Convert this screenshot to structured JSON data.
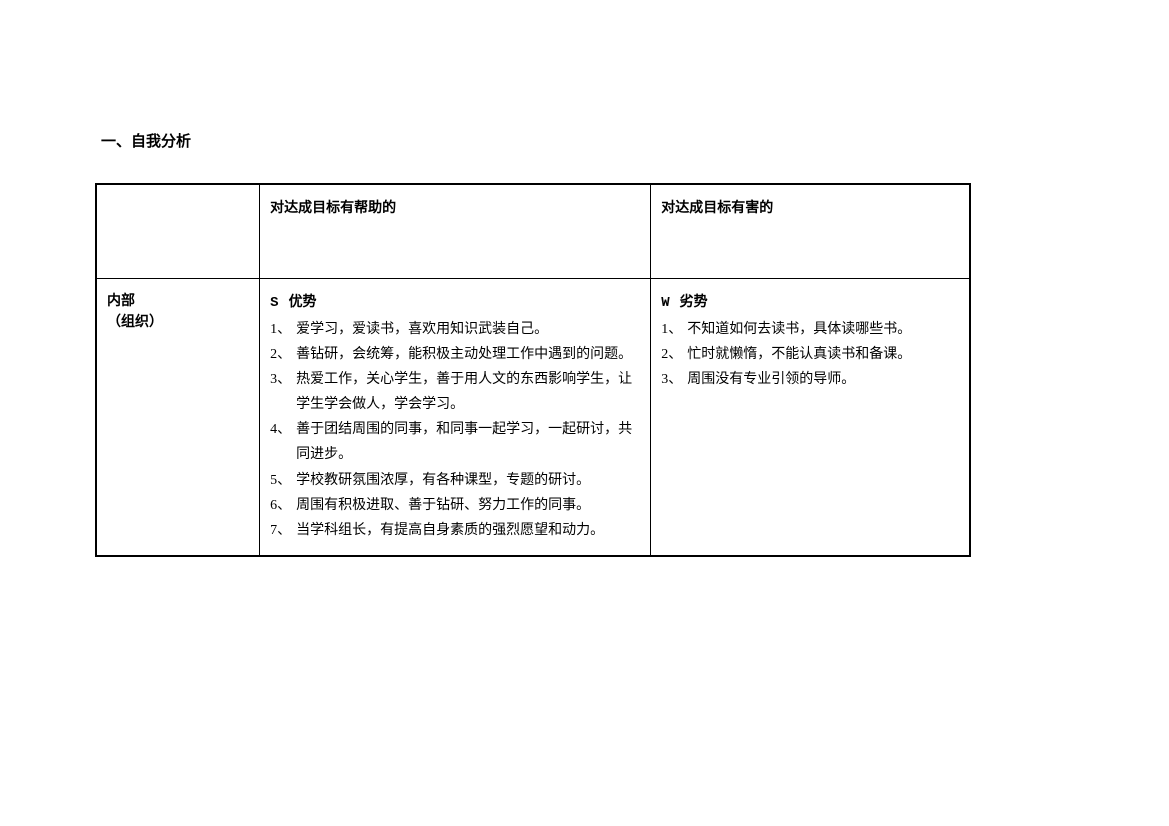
{
  "section_title": "一、自我分析",
  "table": {
    "type": "table",
    "columns": [
      "",
      "对达成目标有帮助的",
      "对达成目标有害的"
    ],
    "row_label_line1": "内部",
    "row_label_line2": "（组织）",
    "strengths": {
      "letter": "S",
      "title": "优势",
      "items": [
        "爱学习，爱读书，喜欢用知识武装自己。",
        "善钻研，会统筹，能积极主动处理工作中遇到的问题。",
        "热爱工作，关心学生，善于用人文的东西影响学生，让学生学会做人，学会学习。",
        "善于团结周围的同事，和同事一起学习，一起研讨，共同进步。",
        "学校教研氛围浓厚，有各种课型，专题的研讨。",
        "周围有积极进取、善于钻研、努力工作的同事。",
        "当学科组长，有提高自身素质的强烈愿望和动力。"
      ]
    },
    "weaknesses": {
      "letter": "W",
      "title": "劣势",
      "items": [
        "不知道如何去读书，具体读哪些书。",
        "忙时就懒惰，不能认真读书和备课。",
        "周围没有专业引领的导师。"
      ]
    }
  },
  "style": {
    "background_color": "#ffffff",
    "text_color": "#000000",
    "border_color": "#000000",
    "title_fontsize": 15,
    "body_fontsize": 14,
    "line_height": 1.8,
    "font_family": "SimSun"
  }
}
